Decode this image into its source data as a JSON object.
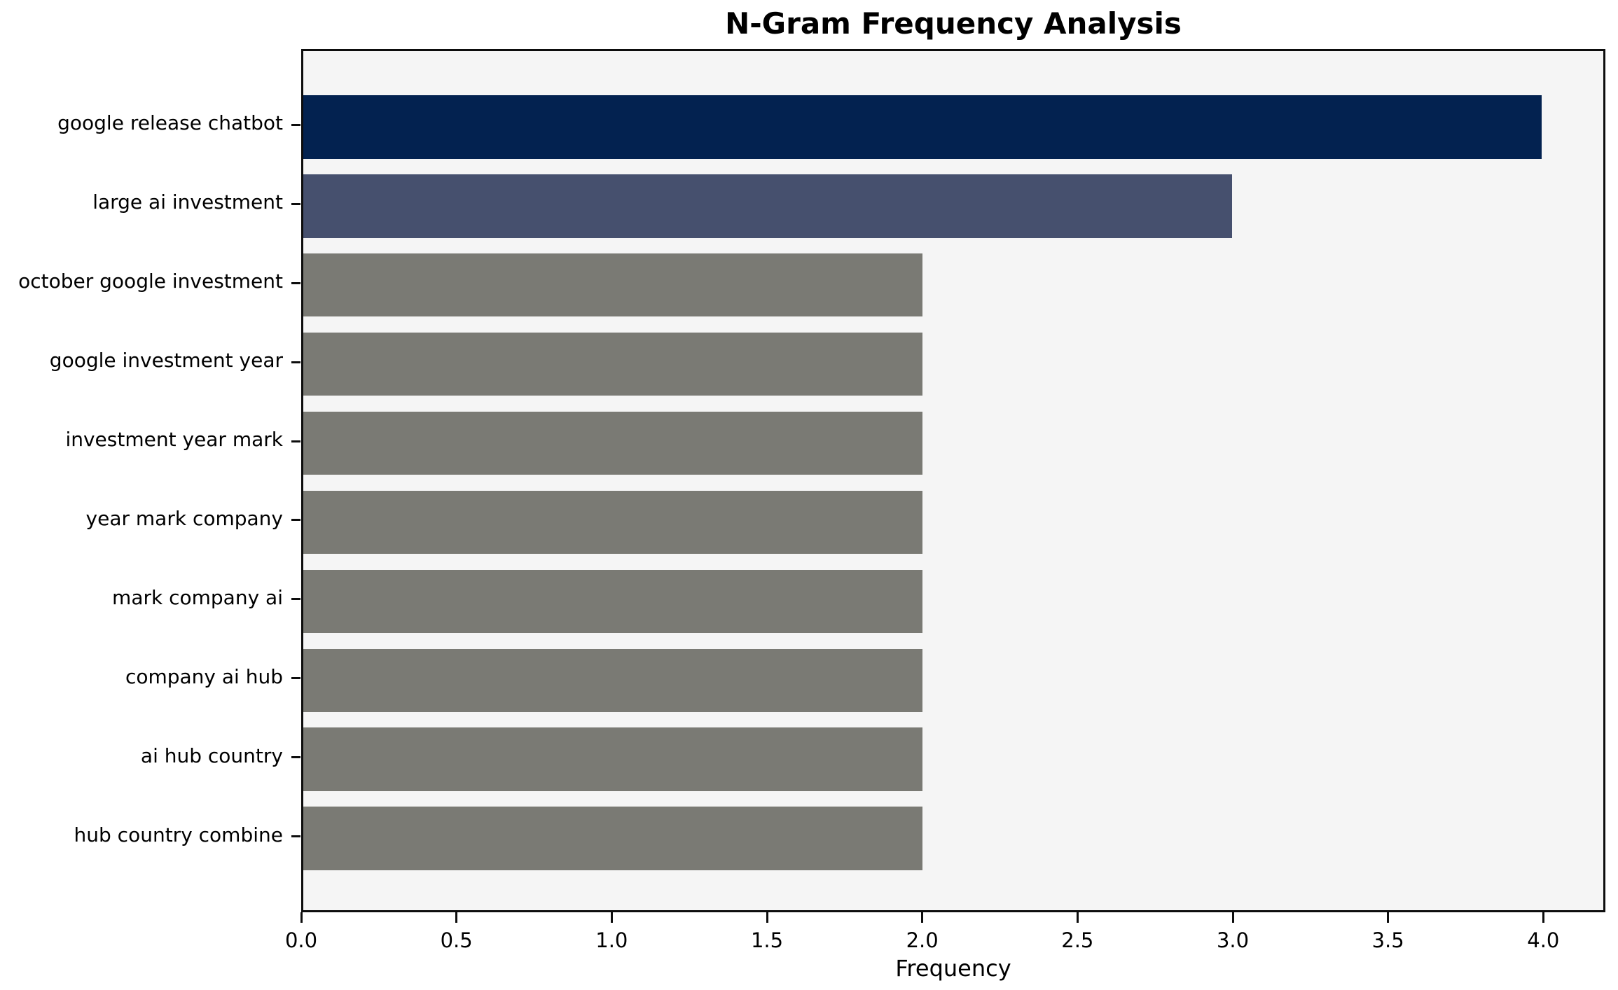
{
  "title": "N-Gram Frequency Analysis",
  "chart_data": {
    "type": "bar",
    "orientation": "horizontal",
    "title": "N-Gram Frequency Analysis",
    "xlabel": "Frequency",
    "ylabel": "",
    "categories": [
      "google release chatbot",
      "large ai investment",
      "october google investment",
      "google investment year",
      "investment year mark",
      "year mark company",
      "mark company ai",
      "company ai hub",
      "ai hub country",
      "hub country combine"
    ],
    "values": [
      4,
      3,
      2,
      2,
      2,
      2,
      2,
      2,
      2,
      2
    ],
    "xlim": [
      0,
      4.2
    ],
    "xticks": [
      0.0,
      0.5,
      1.0,
      1.5,
      2.0,
      2.5,
      3.0,
      3.5,
      4.0
    ],
    "xtick_labels": [
      "0.0",
      "0.5",
      "1.0",
      "1.5",
      "2.0",
      "2.5",
      "3.0",
      "3.5",
      "4.0"
    ],
    "bar_colors": [
      "#032250",
      "#46506e",
      "#7a7a74",
      "#7a7a74",
      "#7a7a74",
      "#7a7a74",
      "#7a7a74",
      "#7a7a74",
      "#7a7a74",
      "#7a7a74"
    ],
    "grid": false,
    "legend": null
  },
  "colors": {
    "figure_bg": "#ffffff",
    "plot_bg": "#f5f5f5",
    "spine": "#0d0d0d",
    "text": "#000000",
    "bar_navy": "#032250",
    "bar_slate": "#46506e",
    "bar_gray": "#7a7a74"
  }
}
